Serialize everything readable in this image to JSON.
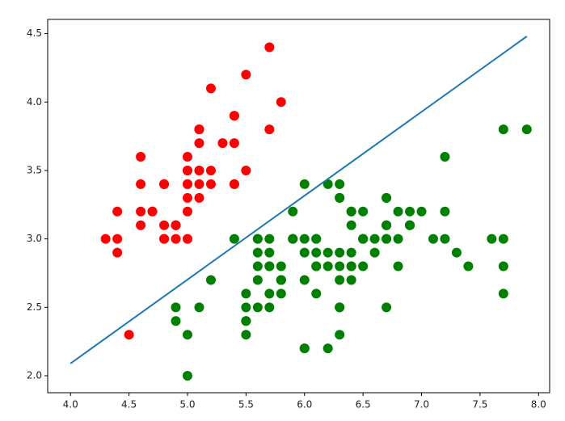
{
  "chart_data": {
    "type": "scatter",
    "series": [
      {
        "color": "red",
        "x": [
          5.1,
          4.9,
          4.7,
          4.6,
          5.0,
          5.4,
          4.6,
          5.0,
          4.4,
          4.9,
          5.4,
          4.8,
          4.8,
          4.3,
          5.8,
          5.7,
          5.4,
          5.1,
          5.7,
          5.1,
          5.4,
          5.1,
          4.6,
          5.1,
          4.8,
          5.0,
          5.0,
          5.2,
          5.2,
          4.7,
          4.8,
          5.4,
          5.2,
          5.5,
          4.9,
          5.0,
          5.5,
          4.9,
          4.4,
          5.1,
          5.0,
          4.5,
          4.4,
          5.0,
          5.1,
          4.8,
          5.1,
          4.6,
          5.3,
          5.0
        ],
        "y": [
          3.5,
          3.0,
          3.2,
          3.1,
          3.6,
          3.9,
          3.4,
          3.4,
          2.9,
          3.1,
          3.7,
          3.4,
          3.0,
          3.0,
          4.0,
          4.4,
          3.9,
          3.5,
          3.8,
          3.8,
          3.4,
          3.7,
          3.6,
          3.3,
          3.4,
          3.0,
          3.4,
          3.5,
          3.4,
          3.2,
          3.1,
          3.4,
          4.1,
          4.2,
          3.1,
          3.2,
          3.5,
          3.1,
          3.0,
          3.4,
          3.5,
          2.3,
          3.2,
          3.5,
          3.8,
          3.0,
          3.8,
          3.2,
          3.7,
          3.3
        ]
      },
      {
        "color": "green",
        "x": [
          7.0,
          6.4,
          6.9,
          5.5,
          6.5,
          5.7,
          6.3,
          4.9,
          6.6,
          5.2,
          5.0,
          5.9,
          6.0,
          6.1,
          5.6,
          6.7,
          5.6,
          5.8,
          6.2,
          5.6,
          5.9,
          6.1,
          6.3,
          6.1,
          6.4,
          6.6,
          6.8,
          6.7,
          6.0,
          5.7,
          5.5,
          5.5,
          5.8,
          6.0,
          5.4,
          6.0,
          6.7,
          6.3,
          5.6,
          5.5,
          5.5,
          6.1,
          5.8,
          5.0,
          5.6,
          5.7,
          5.7,
          6.2,
          5.1,
          5.7,
          6.3,
          5.8,
          7.1,
          6.3,
          6.5,
          7.6,
          4.9,
          7.3,
          6.7,
          7.2,
          6.5,
          6.4,
          6.8,
          5.7,
          5.8,
          6.4,
          6.5,
          7.7,
          7.7,
          6.0,
          6.9,
          5.6,
          7.7,
          6.3,
          6.7,
          7.2,
          6.2,
          6.1,
          6.4,
          7.2,
          7.4,
          7.9,
          6.4,
          6.3,
          6.1,
          7.7,
          6.3,
          6.4,
          6.0,
          6.9,
          6.7,
          6.9,
          5.8,
          6.8,
          6.7,
          6.7,
          6.3,
          6.5,
          6.2,
          5.9
        ],
        "y": [
          3.2,
          3.2,
          3.1,
          2.3,
          2.8,
          2.8,
          3.3,
          2.4,
          2.9,
          2.7,
          2.0,
          3.0,
          2.2,
          2.9,
          2.9,
          3.1,
          3.0,
          2.7,
          2.2,
          2.5,
          3.2,
          2.8,
          2.5,
          2.8,
          2.9,
          3.0,
          2.8,
          3.0,
          2.9,
          2.6,
          2.4,
          2.4,
          2.7,
          2.7,
          3.0,
          3.4,
          3.1,
          2.3,
          3.0,
          2.5,
          2.6,
          3.0,
          2.6,
          2.3,
          2.7,
          3.0,
          2.9,
          2.9,
          2.5,
          2.8,
          3.3,
          2.7,
          3.0,
          2.9,
          3.0,
          3.0,
          2.5,
          2.9,
          2.5,
          3.6,
          3.2,
          2.7,
          3.0,
          2.5,
          2.8,
          3.2,
          3.0,
          3.8,
          2.6,
          2.2,
          3.2,
          2.8,
          2.8,
          2.7,
          3.3,
          3.2,
          2.8,
          3.0,
          2.8,
          3.0,
          2.8,
          3.8,
          2.8,
          2.8,
          2.6,
          3.0,
          3.4,
          3.1,
          3.0,
          3.1,
          3.1,
          3.1,
          2.7,
          3.2,
          3.3,
          3.0,
          2.5,
          3.0,
          3.4,
          3.0
        ]
      }
    ],
    "line": {
      "color": "#1f77b4",
      "x": [
        4.0,
        7.9
      ],
      "y": [
        2.09,
        4.48
      ]
    },
    "xlim": [
      3.805,
      8.095
    ],
    "ylim": [
      1.876,
      4.604
    ],
    "xticks": [
      {
        "value": 4.0,
        "label": "4.0"
      },
      4.5,
      {
        "value": 5.0,
        "label": "5.0"
      },
      5.5,
      {
        "value": 6.0,
        "label": "6.0"
      },
      6.5,
      {
        "value": 7.0,
        "label": "7.0"
      },
      7.5,
      {
        "value": 8.0,
        "label": "8.0"
      }
    ],
    "yticks": [
      {
        "value": 2.0,
        "label": "2.0"
      },
      2.5,
      {
        "value": 3.0,
        "label": "3.0"
      },
      3.5,
      {
        "value": 4.0,
        "label": "4.0"
      },
      4.5
    ]
  }
}
